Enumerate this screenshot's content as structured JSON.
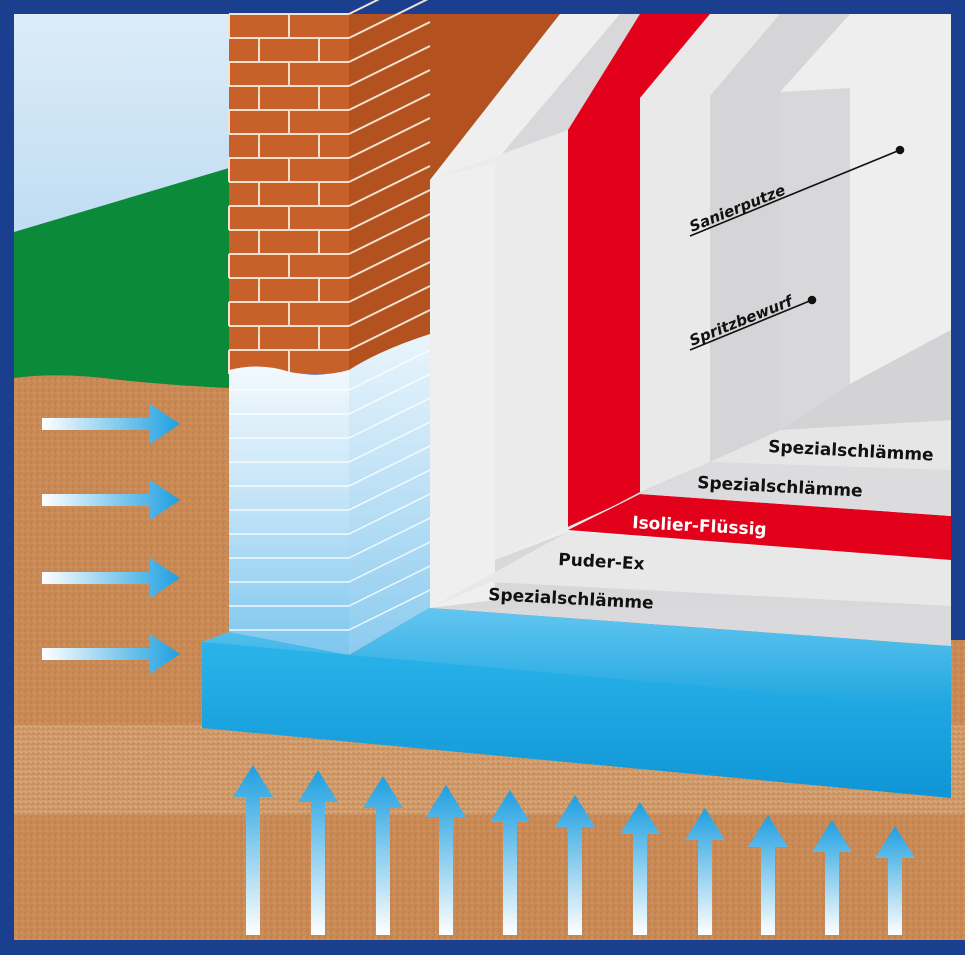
{
  "colors": {
    "frame": "#1a3f8f",
    "sky_top": "#dcecf8",
    "sky_bottom": "#a8d0ee",
    "grass": "#0b8a3a",
    "soil": "#c98a55",
    "brick": "#c8602a",
    "water": "#29aee8",
    "isolation_red": "#e3001b",
    "plaster_light": "#eeeeee",
    "plaster_mid": "#d8d8da",
    "arrow": "#2aa6e4"
  },
  "labels": {
    "sanierputze": "Sanierputze",
    "spritzbewurf": "Spritzbewurf",
    "spezial_right": "Spezialschlämme",
    "spezial_mid": "Spezialschlämme",
    "isolier": "Isolier-Flüssig",
    "puder": "Puder-Ex",
    "spezial_bottom": "Spezialschlämme"
  },
  "icons": {
    "side_arrows": "arrow-right-icon",
    "ground_arrows": "arrow-up-icon"
  }
}
